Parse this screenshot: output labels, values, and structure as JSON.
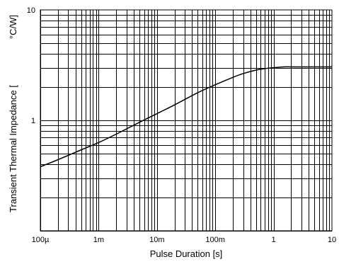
{
  "chart_data": {
    "type": "line",
    "x_scale": "log",
    "y_scale": "log",
    "xlim": [
      0.0001,
      10
    ],
    "ylim": [
      0.1,
      10
    ],
    "grid": true,
    "xlabel": "Pulse Duration [s]",
    "ylabel_main": "Transient Thermal Impedance [",
    "ylabel_unit": "°C/W]",
    "x_ticks": [
      {
        "value": 0.0001,
        "label": "100µ"
      },
      {
        "value": 0.001,
        "label": "1m"
      },
      {
        "value": 0.01,
        "label": "10m"
      },
      {
        "value": 0.1,
        "label": "100m"
      },
      {
        "value": 1,
        "label": "1"
      },
      {
        "value": 10,
        "label": "10"
      }
    ],
    "y_ticks": [
      {
        "value": 1,
        "label": "1"
      },
      {
        "value": 10,
        "label": "10"
      }
    ],
    "series": [
      {
        "x": [
          0.0001,
          0.0002,
          0.0005,
          0.001,
          0.002,
          0.005,
          0.01,
          0.02,
          0.05,
          0.1,
          0.2,
          0.3,
          0.5,
          0.7,
          1,
          1.5,
          2,
          3,
          5,
          10
        ],
        "y": [
          0.38,
          0.44,
          0.54,
          0.63,
          0.75,
          0.96,
          1.15,
          1.38,
          1.78,
          2.1,
          2.45,
          2.65,
          2.85,
          2.94,
          3.0,
          3.05,
          3.05,
          3.05,
          3.05,
          3.05
        ]
      }
    ]
  }
}
